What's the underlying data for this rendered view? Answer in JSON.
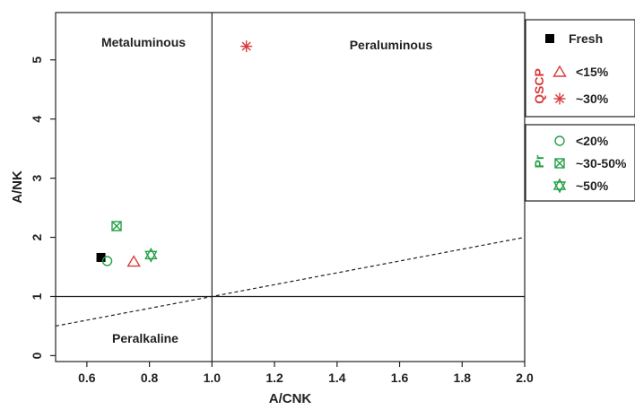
{
  "chart_data": {
    "type": "scatter",
    "xlabel": "A/CNK",
    "ylabel": "A/NK",
    "xlim": [
      0.5,
      2.0
    ],
    "ylim": [
      -0.1,
      5.8
    ],
    "xticks": [
      "0.6",
      "0.8",
      "1.0",
      "1.2",
      "1.4",
      "1.6",
      "1.8",
      "2.0"
    ],
    "yticks": [
      "0",
      "1",
      "2",
      "3",
      "4",
      "5"
    ],
    "region_labels": {
      "metaluminous": "Metaluminous",
      "peraluminous": "Peraluminous",
      "peralkaline": "Peralkaline"
    },
    "reference_lines": [
      {
        "kind": "solid",
        "points": [
          [
            1.0,
            -0.1
          ],
          [
            1.0,
            5.8
          ]
        ]
      },
      {
        "kind": "solid",
        "points": [
          [
            0.5,
            1.0
          ],
          [
            2.0,
            1.0
          ]
        ]
      },
      {
        "kind": "dashed",
        "points": [
          [
            0.5,
            0.5
          ],
          [
            2.0,
            2.0
          ]
        ]
      }
    ],
    "series": [
      {
        "name": "Fresh",
        "marker": "filled-square",
        "color": "#000000",
        "x": 0.645,
        "y": 1.66
      },
      {
        "name": "<15%",
        "marker": "triangle",
        "color": "#d93a3a",
        "x": 0.75,
        "y": 1.59
      },
      {
        "name": "~30%",
        "marker": "asterisk",
        "color": "#d93a3a",
        "x": 1.11,
        "y": 5.23
      },
      {
        "name": "<20%",
        "marker": "circle",
        "color": "#22a045",
        "x": 0.665,
        "y": 1.6
      },
      {
        "name": "~30-50%",
        "marker": "boxed-x",
        "color": "#22a045",
        "x": 0.695,
        "y": 2.19
      },
      {
        "name": "~50%",
        "marker": "hexagram",
        "color": "#22a045",
        "x": 0.805,
        "y": 1.7
      }
    ],
    "legend": {
      "placement": "right",
      "groups": [
        {
          "title": "",
          "color": "#000000",
          "entries": [
            "Fresh"
          ]
        },
        {
          "title": "QSCP",
          "color": "#d93a3a",
          "entries": [
            "<15%",
            "~30%"
          ]
        },
        {
          "title": "Pr",
          "color": "#22a045",
          "entries": [
            "<20%",
            "~30-50%",
            "~50%"
          ]
        }
      ]
    }
  }
}
